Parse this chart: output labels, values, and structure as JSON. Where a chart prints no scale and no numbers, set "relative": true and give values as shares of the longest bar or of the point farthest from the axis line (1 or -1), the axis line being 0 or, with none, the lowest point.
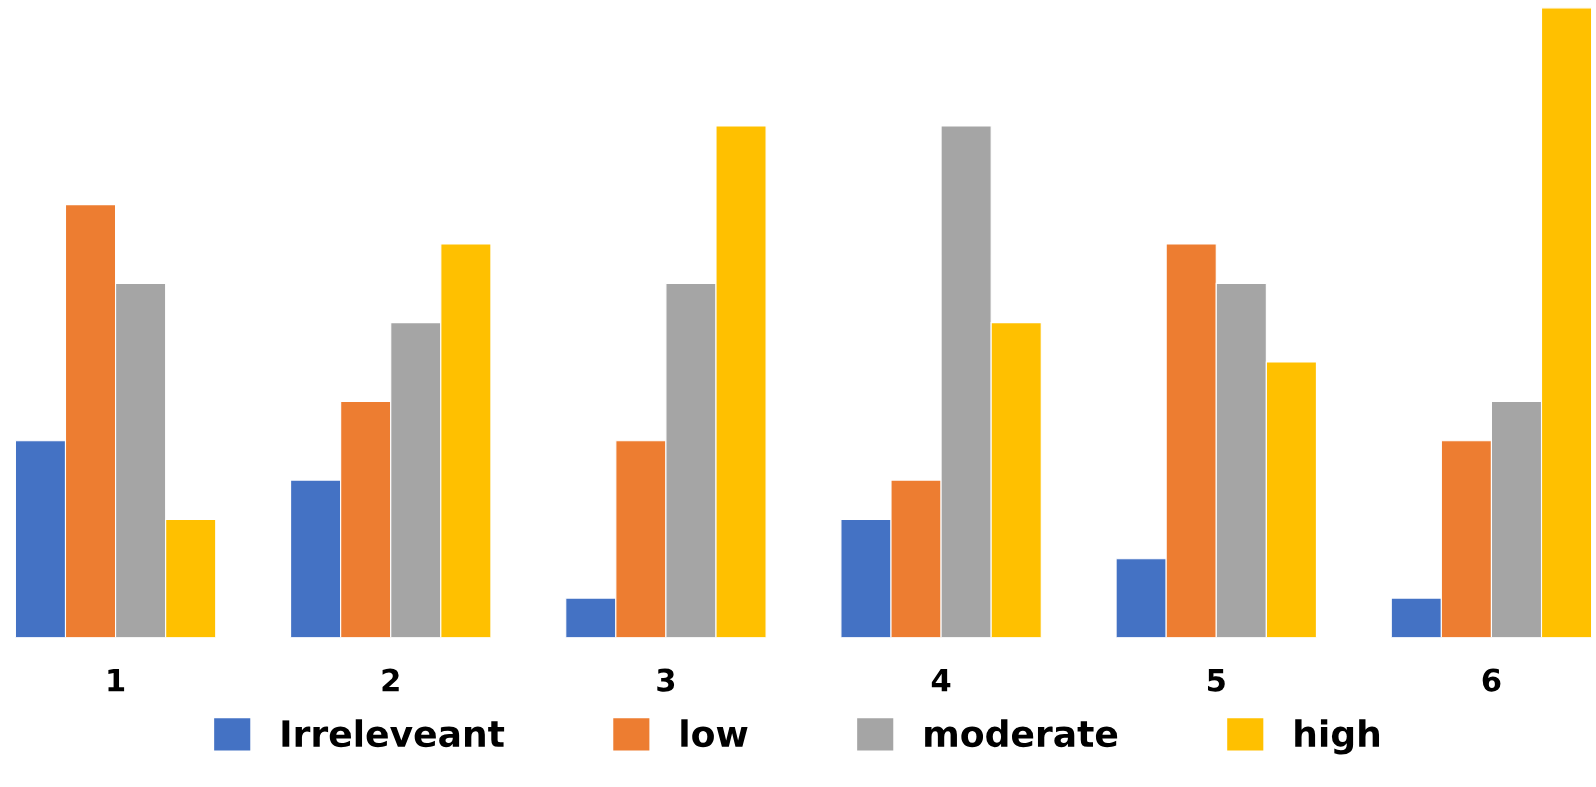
{
  "chart_data": {
    "type": "bar",
    "relative": true,
    "categories": [
      "1",
      "2",
      "3",
      "4",
      "5",
      "6"
    ],
    "series": [
      {
        "name": "Irreleveant",
        "color": "#4472c4",
        "values": [
          0.3125,
          0.25,
          0.0625,
          0.1875,
          0.125,
          0.0625
        ]
      },
      {
        "name": "low",
        "color": "#ed7d31",
        "values": [
          0.6875,
          0.375,
          0.3125,
          0.25,
          0.625,
          0.3125
        ]
      },
      {
        "name": "moderate",
        "color": "#a5a5a5",
        "values": [
          0.5625,
          0.5,
          0.5625,
          0.8125,
          0.5625,
          0.375
        ]
      },
      {
        "name": "high",
        "color": "#ffc000",
        "values": [
          0.1875,
          0.625,
          0.8125,
          0.5,
          0.4375,
          1
        ]
      }
    ],
    "legend": "bottom",
    "grid": false
  }
}
